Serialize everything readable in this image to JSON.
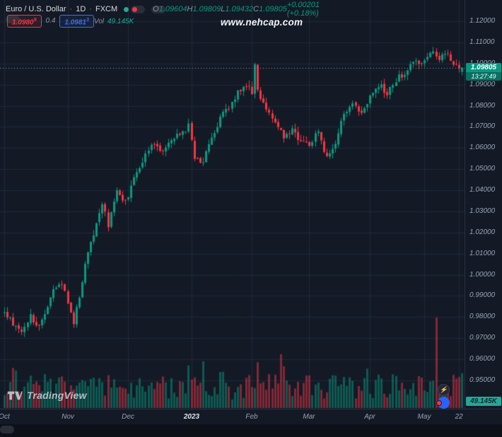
{
  "header": {
    "symbol": "Euro / U.S. Dollar",
    "sep": "·",
    "interval": "1D",
    "exchange": "FXCM",
    "ohlc": {
      "o_label": "O",
      "o": "1.09604",
      "h_label": "H",
      "h": "1.09809",
      "l_label": "L",
      "l": "1.09432",
      "c_label": "C",
      "c": "1.09805",
      "change": "+0.00201 (+0.18%)"
    },
    "trade": {
      "bid": "1.0980",
      "bid_sup": "9",
      "spread": "0.4",
      "ask": "1.0981",
      "ask_sup": "3"
    },
    "vol_label": "Vol",
    "vol_value": "49.145K"
  },
  "watermark": "www.nehcap.com",
  "axis": {
    "price_badge": "1.09805",
    "countdown": "13:27:49",
    "volume_badge": "49.145K"
  },
  "footer": {
    "logo_text": "TradingView"
  },
  "colors": {
    "background": "#131a25",
    "grid": "rgba(50,60,84,0.45)",
    "up": "#089981",
    "down": "#f23645",
    "volume_up": "rgba(8,153,129,0.5)",
    "volume_down": "rgba(242,54,69,0.5)",
    "price_line": "#9aa3b2",
    "axis_text": "#9aa3b2",
    "badge_price_bg": "#089981",
    "badge_volume_bg": "#26a69a",
    "bid": "#f23645",
    "ask": "#2962ff"
  },
  "chart_data": {
    "type": "candlestick",
    "title": "Euro / U.S. Dollar · 1D · FXCM",
    "symbol": "Euro / U.S. Dollar",
    "interval": "1D",
    "exchange": "FXCM",
    "last": {
      "open": 1.09604,
      "high": 1.09809,
      "low": 1.09432,
      "close": 1.09805
    },
    "change_text": "+0.00201 (+0.18%)",
    "countdown": "13:27:49",
    "last_volume_text": "49.145K",
    "y_axis": {
      "min": 0.95,
      "max": 1.12,
      "step": 0.01,
      "decimals": 5,
      "side": "right"
    },
    "x_axis": {
      "labels": [
        {
          "text": "Oct",
          "day": 0
        },
        {
          "text": "Nov",
          "day": 22
        },
        {
          "text": "Dec",
          "day": 43
        },
        {
          "text": "2023",
          "day": 65,
          "emphasis": true
        },
        {
          "text": "Feb",
          "day": 86
        },
        {
          "text": "Mar",
          "day": 106
        },
        {
          "text": "Apr",
          "day": 127
        },
        {
          "text": "May",
          "day": 146
        },
        {
          "text": "22",
          "day": 158
        }
      ]
    },
    "n_days": 160,
    "anchor_closes": [
      [
        0,
        0.982
      ],
      [
        3,
        0.9775
      ],
      [
        6,
        0.9745
      ],
      [
        9,
        0.98
      ],
      [
        12,
        0.976
      ],
      [
        15,
        0.985
      ],
      [
        18,
        0.995
      ],
      [
        20,
        0.997
      ],
      [
        22,
        0.987
      ],
      [
        24,
        0.977
      ],
      [
        26,
        0.99
      ],
      [
        28,
        1.005
      ],
      [
        31,
        1.019
      ],
      [
        34,
        1.033
      ],
      [
        36,
        1.024
      ],
      [
        39,
        1.041
      ],
      [
        41,
        1.035
      ],
      [
        43,
        1.038
      ],
      [
        46,
        1.05
      ],
      [
        49,
        1.056
      ],
      [
        52,
        1.062
      ],
      [
        55,
        1.058
      ],
      [
        58,
        1.065
      ],
      [
        61,
        1.067
      ],
      [
        64,
        1.07
      ],
      [
        66,
        1.056
      ],
      [
        69,
        1.053
      ],
      [
        72,
        1.065
      ],
      [
        75,
        1.074
      ],
      [
        78,
        1.08
      ],
      [
        81,
        1.086
      ],
      [
        84,
        1.089
      ],
      [
        86,
        1.0865
      ],
      [
        87,
        1.099
      ],
      [
        88,
        1.087
      ],
      [
        91,
        1.079
      ],
      [
        94,
        1.071
      ],
      [
        97,
        1.066
      ],
      [
        100,
        1.069
      ],
      [
        103,
        1.062
      ],
      [
        106,
        1.061
      ],
      [
        109,
        1.068
      ],
      [
        112,
        1.0555
      ],
      [
        115,
        1.063
      ],
      [
        118,
        1.076
      ],
      [
        121,
        1.082
      ],
      [
        124,
        1.077
      ],
      [
        127,
        1.0845
      ],
      [
        130,
        1.09
      ],
      [
        133,
        1.0865
      ],
      [
        136,
        1.092
      ],
      [
        139,
        1.096
      ],
      [
        142,
        1.101
      ],
      [
        145,
        1.0985
      ],
      [
        147,
        1.1045
      ],
      [
        149,
        1.1065
      ],
      [
        151,
        1.1005
      ],
      [
        153,
        1.105
      ],
      [
        155,
        1.102
      ],
      [
        157,
        1.099
      ],
      [
        159,
        1.098
      ]
    ],
    "volume": {
      "scale_max": 130000,
      "spike_day": 150,
      "spike_value": 128000,
      "last_value": 49145
    },
    "seed": 42,
    "grid": true,
    "legend_position": "top-left"
  }
}
